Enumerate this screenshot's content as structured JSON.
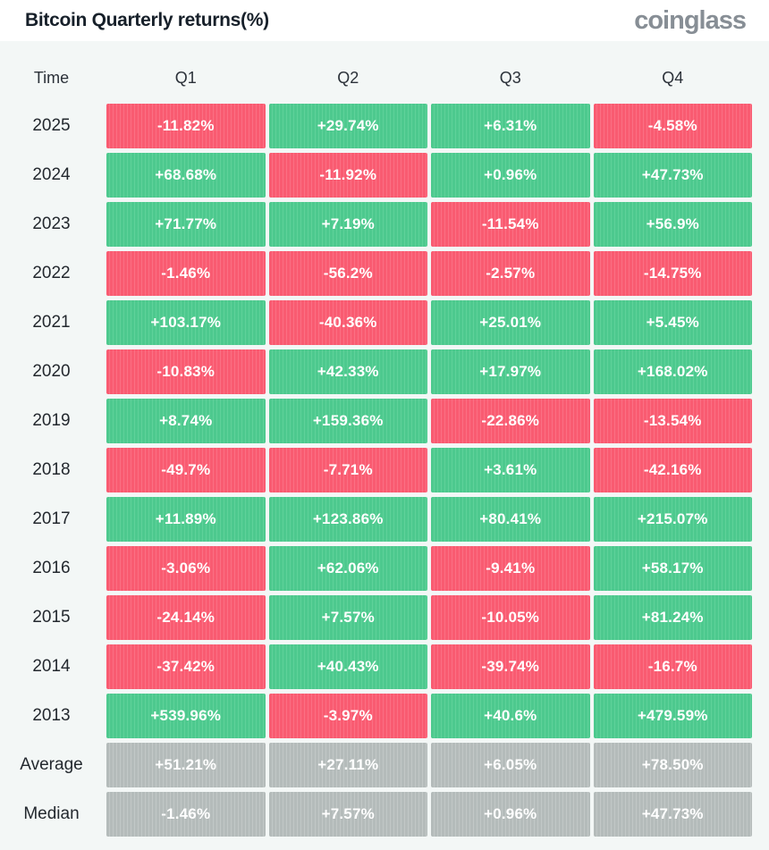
{
  "header": {
    "title": "Bitcoin Quarterly returns(%)",
    "logo": "coinglass"
  },
  "table": {
    "columns": [
      "Time",
      "Q1",
      "Q2",
      "Q3",
      "Q4"
    ],
    "rows": [
      {
        "label": "2025",
        "kind": "year",
        "values": [
          "-11.82%",
          "+29.74%",
          "+6.31%",
          "-4.58%"
        ]
      },
      {
        "label": "2024",
        "kind": "year",
        "values": [
          "+68.68%",
          "-11.92%",
          "+0.96%",
          "+47.73%"
        ]
      },
      {
        "label": "2023",
        "kind": "year",
        "values": [
          "+71.77%",
          "+7.19%",
          "-11.54%",
          "+56.9%"
        ]
      },
      {
        "label": "2022",
        "kind": "year",
        "values": [
          "-1.46%",
          "-56.2%",
          "-2.57%",
          "-14.75%"
        ]
      },
      {
        "label": "2021",
        "kind": "year",
        "values": [
          "+103.17%",
          "-40.36%",
          "+25.01%",
          "+5.45%"
        ]
      },
      {
        "label": "2020",
        "kind": "year",
        "values": [
          "-10.83%",
          "+42.33%",
          "+17.97%",
          "+168.02%"
        ]
      },
      {
        "label": "2019",
        "kind": "year",
        "values": [
          "+8.74%",
          "+159.36%",
          "-22.86%",
          "-13.54%"
        ]
      },
      {
        "label": "2018",
        "kind": "year",
        "values": [
          "-49.7%",
          "-7.71%",
          "+3.61%",
          "-42.16%"
        ]
      },
      {
        "label": "2017",
        "kind": "year",
        "values": [
          "+11.89%",
          "+123.86%",
          "+80.41%",
          "+215.07%"
        ]
      },
      {
        "label": "2016",
        "kind": "year",
        "values": [
          "-3.06%",
          "+62.06%",
          "-9.41%",
          "+58.17%"
        ]
      },
      {
        "label": "2015",
        "kind": "year",
        "values": [
          "-24.14%",
          "+7.57%",
          "-10.05%",
          "+81.24%"
        ]
      },
      {
        "label": "2014",
        "kind": "year",
        "values": [
          "-37.42%",
          "+40.43%",
          "-39.74%",
          "-16.7%"
        ]
      },
      {
        "label": "2013",
        "kind": "year",
        "values": [
          "+539.96%",
          "-3.97%",
          "+40.6%",
          "+479.59%"
        ]
      },
      {
        "label": "Average",
        "kind": "summary",
        "values": [
          "+51.21%",
          "+27.11%",
          "+6.05%",
          "+78.50%"
        ]
      },
      {
        "label": "Median",
        "kind": "summary",
        "values": [
          "-1.46%",
          "+7.57%",
          "+0.96%",
          "+47.73%"
        ]
      }
    ]
  },
  "colors": {
    "positive": "#4dc98e",
    "positive_stripe": "#5fd29a",
    "negative": "#f95b71",
    "negative_stripe": "#fb7084",
    "summary": "#b4bbba",
    "summary_stripe": "#c2c8c7"
  },
  "chart_data": {
    "type": "heatmap",
    "title": "Bitcoin Quarterly returns(%)",
    "source": "coinglass",
    "rows": [
      "2025",
      "2024",
      "2023",
      "2022",
      "2021",
      "2020",
      "2019",
      "2018",
      "2017",
      "2016",
      "2015",
      "2014",
      "2013",
      "Average",
      "Median"
    ],
    "columns": [
      "Q1",
      "Q2",
      "Q3",
      "Q4"
    ],
    "values": [
      [
        -11.82,
        29.74,
        6.31,
        -4.58
      ],
      [
        68.68,
        -11.92,
        0.96,
        47.73
      ],
      [
        71.77,
        7.19,
        -11.54,
        56.9
      ],
      [
        -1.46,
        -56.2,
        -2.57,
        -14.75
      ],
      [
        103.17,
        -40.36,
        25.01,
        5.45
      ],
      [
        -10.83,
        42.33,
        17.97,
        168.02
      ],
      [
        8.74,
        159.36,
        -22.86,
        -13.54
      ],
      [
        -49.7,
        -7.71,
        3.61,
        -42.16
      ],
      [
        11.89,
        123.86,
        80.41,
        215.07
      ],
      [
        -3.06,
        62.06,
        -9.41,
        58.17
      ],
      [
        -24.14,
        7.57,
        -10.05,
        81.24
      ],
      [
        -37.42,
        40.43,
        -39.74,
        -16.7
      ],
      [
        539.96,
        -3.97,
        40.6,
        479.59
      ],
      [
        51.21,
        27.11,
        6.05,
        78.5
      ],
      [
        -1.46,
        7.57,
        0.96,
        47.73
      ]
    ],
    "unit": "%",
    "color_rule": "negative=red, positive=green, summary rows=gray"
  }
}
